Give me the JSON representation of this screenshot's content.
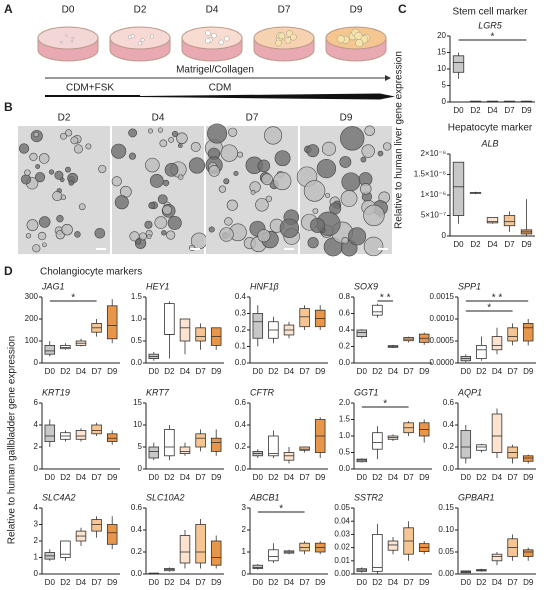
{
  "panel_labels": [
    "A",
    "B",
    "C",
    "D"
  ],
  "panel_a": {
    "days": [
      "D0",
      "D2",
      "D4",
      "D7",
      "D9"
    ],
    "matrix": "Matrigel/Collagen",
    "media": [
      "CDM+FSK",
      "CDM"
    ]
  },
  "panel_b": {
    "days": [
      "D2",
      "D4",
      "D7",
      "D9"
    ]
  },
  "panel_c": {
    "y_label": "Relative to human liver gene expression"
  },
  "panel_d": {
    "y_label": "Relative to human gallbladder gene expression"
  },
  "chart_data": [
    {
      "type": "box",
      "heading": "Stem cell marker",
      "title": "LGR5",
      "categories": [
        "D0",
        "D2",
        "D4",
        "D7",
        "D9"
      ],
      "colors": [
        "#c8c8c8",
        "#ffffff",
        "#fbe3cf",
        "#f6c594",
        "#e8964a"
      ],
      "boxes": [
        [
          7,
          9,
          12,
          14,
          15
        ],
        [
          0.1,
          0.15,
          0.2,
          0.25,
          0.3
        ],
        [
          0.1,
          0.15,
          0.2,
          0.25,
          0.3
        ],
        [
          0.1,
          0.15,
          0.2,
          0.25,
          0.3
        ],
        [
          0.1,
          0.15,
          0.2,
          0.25,
          0.3
        ]
      ],
      "ylim": [
        0,
        20
      ],
      "yticks": [
        0,
        5,
        10,
        15,
        20
      ],
      "significance": [
        {
          "from": 0,
          "to": 4,
          "label": "*"
        }
      ]
    },
    {
      "type": "box",
      "heading": "Hepatocyte marker",
      "title": "ALB",
      "categories": [
        "D0",
        "D2",
        "D4",
        "D7",
        "D9"
      ],
      "colors": [
        "#c8c8c8",
        "#ffffff",
        "#fbe3cf",
        "#f6c594",
        "#e8964a"
      ],
      "boxes": [
        [
          3e-07,
          5e-07,
          1.2e-06,
          1.8e-06,
          1.8e-06
        ],
        [
          1.02e-06,
          1.04e-06,
          1.05e-06,
          1.06e-06,
          1.08e-06
        ],
        [
          3e-07,
          3.2e-07,
          3.5e-07,
          4.5e-07,
          4.5e-07
        ],
        [
          1e-07,
          2.5e-07,
          3.5e-07,
          5e-07,
          6e-07
        ],
        [
          0,
          5e-08,
          1e-07,
          1.5e-07,
          9e-07
        ]
      ],
      "ylim": [
        0,
        2e-06
      ],
      "yticks": [
        0,
        {
          "value": 5e-07,
          "label": "5×10⁻⁷"
        },
        {
          "value": 1e-06,
          "label": "1×10⁻⁶"
        },
        {
          "value": 1.5e-06,
          "label": "1.5×10⁻⁶"
        },
        {
          "value": 2e-06,
          "label": "2×10⁻⁶"
        }
      ],
      "significance": []
    },
    {
      "type": "box",
      "heading": "Cholangiocyte markers",
      "title": "JAG1",
      "categories": [
        "D0",
        "D2",
        "D4",
        "D7",
        "D9"
      ],
      "colors": [
        "#c8c8c8",
        "#ffffff",
        "#fbe3cf",
        "#f6c594",
        "#e8964a"
      ],
      "boxes": [
        [
          30,
          40,
          55,
          80,
          100
        ],
        [
          60,
          65,
          70,
          80,
          90
        ],
        [
          75,
          80,
          90,
          100,
          110
        ],
        [
          120,
          140,
          160,
          180,
          200
        ],
        [
          90,
          110,
          170,
          260,
          290
        ]
      ],
      "ylim": [
        0,
        300
      ],
      "yticks": [
        0,
        100,
        200,
        300
      ],
      "significance": [
        {
          "from": 0,
          "to": 3,
          "label": "*"
        }
      ]
    },
    {
      "type": "box",
      "title": "HEY1",
      "categories": [
        "D0",
        "D2",
        "D4",
        "D7",
        "D9"
      ],
      "colors": [
        "#c8c8c8",
        "#ffffff",
        "#fbe3cf",
        "#f6c594",
        "#e8964a"
      ],
      "boxes": [
        [
          0.05,
          0.1,
          0.15,
          0.2,
          0.25
        ],
        [
          0.1,
          0.65,
          0.65,
          1.35,
          1.4
        ],
        [
          0.2,
          0.5,
          0.8,
          1.0,
          1.0
        ],
        [
          0.3,
          0.5,
          0.6,
          0.8,
          0.9
        ],
        [
          0.3,
          0.4,
          0.6,
          0.8,
          0.8
        ]
      ],
      "ylim": [
        0,
        1.5
      ],
      "yticks": [
        {
          "value": 0,
          "label": "0.0"
        },
        0.5,
        {
          "value": 1,
          "label": "1.0"
        },
        1.5
      ],
      "significance": []
    },
    {
      "type": "box",
      "title": "HNF1β",
      "categories": [
        "D0",
        "D2",
        "D4",
        "D7",
        "D9"
      ],
      "colors": [
        "#c8c8c8",
        "#ffffff",
        "#fbe3cf",
        "#f6c594",
        "#e8964a"
      ],
      "boxes": [
        [
          0.1,
          0.15,
          0.25,
          0.3,
          0.35
        ],
        [
          0.12,
          0.15,
          0.2,
          0.25,
          0.28
        ],
        [
          0.15,
          0.17,
          0.2,
          0.23,
          0.25
        ],
        [
          0.2,
          0.22,
          0.28,
          0.33,
          0.35
        ],
        [
          0.2,
          0.22,
          0.27,
          0.32,
          0.35
        ]
      ],
      "ylim": [
        0,
        0.4
      ],
      "yticks": [
        {
          "value": 0,
          "label": "0.0"
        },
        0.1,
        0.2,
        0.3,
        0.4
      ],
      "significance": []
    },
    {
      "type": "box",
      "title": "SOX9",
      "categories": [
        "D0",
        "D2",
        "D4",
        "D7",
        "D9"
      ],
      "colors": [
        "#c8c8c8",
        "#ffffff",
        "#fbe3cf",
        "#f6c594",
        "#e8964a"
      ],
      "boxes": [
        [
          0.3,
          0.32,
          0.37,
          0.4,
          0.41
        ],
        [
          0.55,
          0.58,
          0.62,
          0.7,
          0.72
        ],
        [
          0.18,
          0.19,
          0.2,
          0.21,
          0.22
        ],
        [
          0.25,
          0.27,
          0.29,
          0.31,
          0.32
        ],
        [
          0.22,
          0.25,
          0.3,
          0.35,
          0.37
        ]
      ],
      "ylim": [
        0,
        0.8
      ],
      "yticks": [
        {
          "value": 0,
          "label": "0.0"
        },
        0.2,
        0.4,
        0.6,
        0.8
      ],
      "significance": [
        {
          "from": 1,
          "to": 2,
          "label": "* *"
        }
      ]
    },
    {
      "type": "box",
      "title": "SPP1",
      "categories": [
        "D0",
        "D2",
        "D4",
        "D7",
        "D9"
      ],
      "colors": [
        "#c8c8c8",
        "#ffffff",
        "#fbe3cf",
        "#f6c594",
        "#e8964a"
      ],
      "boxes": [
        [
          2e-05,
          5e-05,
          0.0001,
          0.00015,
          0.0002
        ],
        [
          5e-05,
          0.0001,
          0.0003,
          0.0004,
          0.0006
        ],
        [
          0.0002,
          0.0003,
          0.0004,
          0.0006,
          0.0008
        ],
        [
          0.0004,
          0.0005,
          0.0006,
          0.0008,
          0.0009
        ],
        [
          0.0004,
          0.0005,
          0.0008,
          0.0009,
          0.001
        ]
      ],
      "ylim": [
        0,
        0.0015
      ],
      "yticks": [
        {
          "value": 0,
          "label": "0.0000"
        },
        {
          "value": 0.0005,
          "label": "0.0005"
        },
        {
          "value": 0.001,
          "label": "0.0010"
        },
        {
          "value": 0.0015,
          "label": "0.0015"
        }
      ],
      "significance": [
        {
          "from": 0,
          "to": 4,
          "label": "* *"
        },
        {
          "from": 0,
          "to": 3,
          "label": "*"
        }
      ]
    },
    {
      "type": "box",
      "title": "KRT19",
      "categories": [
        "D0",
        "D2",
        "D4",
        "D7",
        "D9"
      ],
      "colors": [
        "#c8c8c8",
        "#ffffff",
        "#fbe3cf",
        "#f6c594",
        "#e8964a"
      ],
      "boxes": [
        [
          2,
          2.5,
          3,
          4,
          4.5
        ],
        [
          2.5,
          2.7,
          3,
          3.3,
          3.5
        ],
        [
          2.5,
          2.7,
          3,
          3.5,
          3.7
        ],
        [
          3,
          3.2,
          3.5,
          4,
          4.2
        ],
        [
          2.2,
          2.5,
          2.8,
          3.2,
          3.5
        ]
      ],
      "ylim": [
        0,
        6
      ],
      "yticks": [
        0,
        2,
        4,
        6
      ],
      "significance": []
    },
    {
      "type": "box",
      "title": "KRT7",
      "categories": [
        "D0",
        "D2",
        "D4",
        "D7",
        "D9"
      ],
      "colors": [
        "#c8c8c8",
        "#ffffff",
        "#fbe3cf",
        "#f6c594",
        "#e8964a"
      ],
      "boxes": [
        [
          2,
          2.5,
          4,
          5,
          6
        ],
        [
          2,
          3,
          5,
          9,
          10
        ],
        [
          3,
          3.5,
          4,
          5,
          6
        ],
        [
          4,
          5,
          7,
          8,
          9
        ],
        [
          3,
          4,
          6,
          7,
          9
        ]
      ],
      "ylim": [
        0,
        15
      ],
      "yticks": [
        0,
        5,
        10,
        15
      ],
      "significance": []
    },
    {
      "type": "box",
      "title": "CFTR",
      "categories": [
        "D0",
        "D2",
        "D4",
        "D7",
        "D9"
      ],
      "colors": [
        "#c8c8c8",
        "#ffffff",
        "#fbe3cf",
        "#f6c594",
        "#e8964a"
      ],
      "boxes": [
        [
          0.1,
          0.12,
          0.14,
          0.16,
          0.18
        ],
        [
          0.1,
          0.12,
          0.14,
          0.3,
          0.35
        ],
        [
          0.05,
          0.08,
          0.12,
          0.15,
          0.2
        ],
        [
          0.15,
          0.17,
          0.18,
          0.2,
          0.2
        ],
        [
          0.1,
          0.15,
          0.3,
          0.45,
          0.47
        ]
      ],
      "ylim": [
        0,
        0.6
      ],
      "yticks": [
        {
          "value": 0,
          "label": "0.0"
        },
        0.2,
        0.4,
        0.6
      ],
      "significance": []
    },
    {
      "type": "box",
      "title": "GGT1",
      "categories": [
        "D0",
        "D2",
        "D4",
        "D7",
        "D9"
      ],
      "colors": [
        "#c8c8c8",
        "#ffffff",
        "#fbe3cf",
        "#f6c594",
        "#e8964a"
      ],
      "boxes": [
        [
          0.2,
          0.22,
          0.27,
          0.3,
          0.32
        ],
        [
          0.3,
          0.6,
          0.8,
          1.1,
          1.3
        ],
        [
          0.85,
          0.9,
          0.95,
          1.0,
          1.05
        ],
        [
          1.0,
          1.1,
          1.25,
          1.4,
          1.45
        ],
        [
          0.8,
          1.0,
          1.2,
          1.4,
          1.5
        ]
      ],
      "ylim": [
        0,
        2
      ],
      "yticks": [
        {
          "value": 0,
          "label": "0.0"
        },
        0.5,
        {
          "value": 1,
          "label": "1.0"
        },
        1.5,
        {
          "value": 2,
          "label": "2.0"
        }
      ],
      "significance": [
        {
          "from": 0,
          "to": 3,
          "label": "*"
        }
      ]
    },
    {
      "type": "box",
      "title": "AQP1",
      "categories": [
        "D0",
        "D2",
        "D4",
        "D7",
        "D9"
      ],
      "colors": [
        "#c8c8c8",
        "#ffffff",
        "#fbe3cf",
        "#f6c594",
        "#e8964a"
      ],
      "boxes": [
        [
          0.05,
          0.1,
          0.2,
          0.35,
          0.4
        ],
        [
          0.15,
          0.17,
          0.2,
          0.22,
          0.23
        ],
        [
          0.1,
          0.15,
          0.3,
          0.5,
          0.55
        ],
        [
          0.05,
          0.1,
          0.15,
          0.2,
          0.22
        ],
        [
          0.05,
          0.07,
          0.1,
          0.12,
          0.13
        ]
      ],
      "ylim": [
        0,
        0.6
      ],
      "yticks": [
        {
          "value": 0,
          "label": "0.0"
        },
        0.2,
        0.4,
        0.6
      ],
      "significance": []
    },
    {
      "type": "box",
      "title": "SLC4A2",
      "categories": [
        "D0",
        "D2",
        "D4",
        "D7",
        "D9"
      ],
      "colors": [
        "#c8c8c8",
        "#ffffff",
        "#fbe3cf",
        "#f6c594",
        "#e8964a"
      ],
      "boxes": [
        [
          0.8,
          0.9,
          1.1,
          1.3,
          1.5
        ],
        [
          0.8,
          1,
          1.2,
          2,
          2
        ],
        [
          1.7,
          2,
          2.3,
          2.6,
          2.8
        ],
        [
          2.2,
          2.6,
          3,
          3.3,
          3.5
        ],
        [
          1.5,
          1.8,
          2.5,
          3,
          3.5
        ]
      ],
      "ylim": [
        0,
        4
      ],
      "yticks": [
        0,
        1,
        2,
        3,
        4
      ],
      "significance": []
    },
    {
      "type": "box",
      "title": "SLC10A2",
      "categories": [
        "D0",
        "D2",
        "D4",
        "D7",
        "D9"
      ],
      "colors": [
        "#c8c8c8",
        "#ffffff",
        "#fbe3cf",
        "#f6c594",
        "#e8964a"
      ],
      "boxes": [
        [
          0,
          0.002,
          0.004,
          0.008,
          0.01
        ],
        [
          0.02,
          0.03,
          0.04,
          0.05,
          0.06
        ],
        [
          0.05,
          0.1,
          0.2,
          0.35,
          0.4
        ],
        [
          0.05,
          0.1,
          0.2,
          0.45,
          0.5
        ],
        [
          0.05,
          0.08,
          0.15,
          0.3,
          0.35
        ]
      ],
      "ylim": [
        0,
        0.6
      ],
      "yticks": [
        {
          "value": 0,
          "label": "0.0"
        },
        0.2,
        0.4,
        0.6
      ],
      "significance": []
    },
    {
      "type": "box",
      "title": "ABCB1",
      "categories": [
        "D0",
        "D2",
        "D4",
        "D7",
        "D9"
      ],
      "colors": [
        "#c8c8c8",
        "#ffffff",
        "#fbe3cf",
        "#f6c594",
        "#e8964a"
      ],
      "boxes": [
        [
          0.2,
          0.25,
          0.3,
          0.4,
          0.45
        ],
        [
          0.5,
          0.6,
          0.8,
          1.1,
          1.4
        ],
        [
          0.9,
          0.95,
          1,
          1.05,
          1.1
        ],
        [
          0.9,
          1.05,
          1.2,
          1.4,
          1.5
        ],
        [
          0.9,
          1,
          1.2,
          1.4,
          1.5
        ]
      ],
      "ylim": [
        0,
        3
      ],
      "yticks": [
        0,
        1,
        2,
        3
      ],
      "significance": [
        {
          "from": 0,
          "to": 3,
          "label": "*"
        }
      ]
    },
    {
      "type": "box",
      "title": "SSTR2",
      "categories": [
        "D0",
        "D2",
        "D4",
        "D7",
        "D9"
      ],
      "colors": [
        "#c8c8c8",
        "#ffffff",
        "#fbe3cf",
        "#f6c594",
        "#e8964a"
      ],
      "boxes": [
        [
          0.001,
          0.002,
          0.003,
          0.004,
          0.005
        ],
        [
          0,
          0.002,
          0.005,
          0.03,
          0.038
        ],
        [
          0.015,
          0.018,
          0.022,
          0.025,
          0.028
        ],
        [
          0.01,
          0.015,
          0.025,
          0.035,
          0.04
        ],
        [
          0.015,
          0.017,
          0.02,
          0.023,
          0.025
        ]
      ],
      "ylim": [
        0,
        0.05
      ],
      "yticks": [
        {
          "value": 0,
          "label": "0.00"
        },
        0.01,
        0.02,
        0.03,
        0.04,
        0.05
      ],
      "significance": []
    },
    {
      "type": "box",
      "title": "GPBAR1",
      "categories": [
        "D0",
        "D2",
        "D4",
        "D7",
        "D9"
      ],
      "colors": [
        "#c8c8c8",
        "#ffffff",
        "#fbe3cf",
        "#f6c594",
        "#e8964a"
      ],
      "boxes": [
        [
          0.002,
          0.003,
          0.005,
          0.007,
          0.008
        ],
        [
          0.005,
          0.007,
          0.008,
          0.01,
          0.012
        ],
        [
          0.02,
          0.03,
          0.04,
          0.045,
          0.05
        ],
        [
          0.03,
          0.04,
          0.06,
          0.08,
          0.09
        ],
        [
          0.03,
          0.04,
          0.05,
          0.055,
          0.06
        ]
      ],
      "ylim": [
        0,
        0.15
      ],
      "yticks": [
        {
          "value": 0,
          "label": "0.00"
        },
        0.05,
        {
          "value": 0.1,
          "label": "0.10"
        },
        0.15
      ],
      "significance": []
    }
  ]
}
